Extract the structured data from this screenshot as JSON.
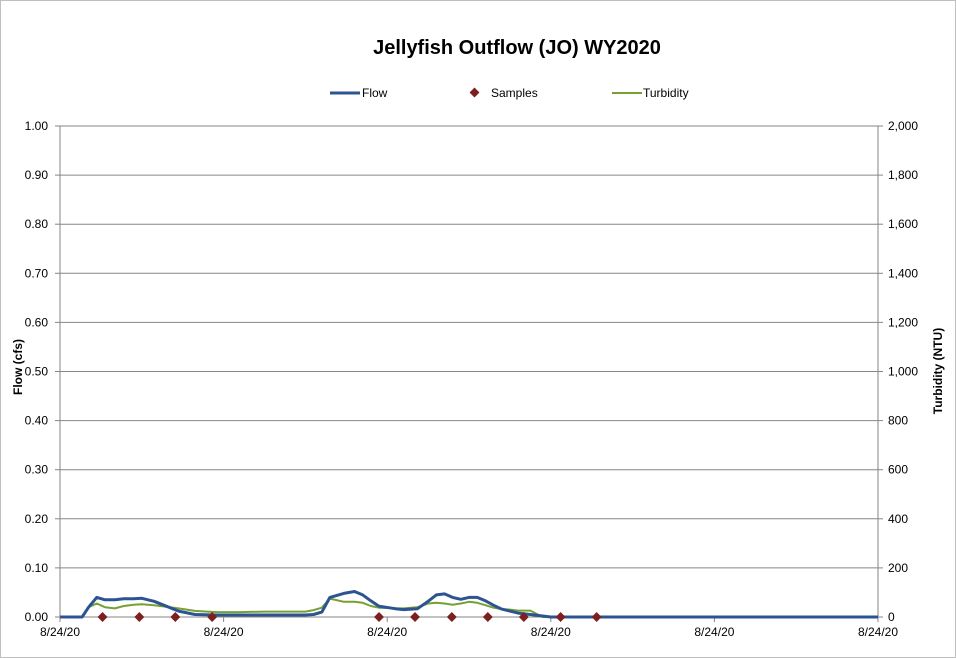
{
  "chart_data": {
    "type": "line",
    "title": "Jellyfish Outflow (JO) WY2020",
    "ylabel": "Flow (cfs)",
    "y2label": "Turbidity (NTU)",
    "ylim": [
      0,
      1
    ],
    "y2lim": [
      0,
      2000
    ],
    "y_ticks": [
      "0.00",
      "0.10",
      "0.20",
      "0.30",
      "0.40",
      "0.50",
      "0.60",
      "0.70",
      "0.80",
      "0.90",
      "1.00"
    ],
    "y2_ticks": [
      "0",
      "200",
      "400",
      "600",
      "800",
      "1,000",
      "1,200",
      "1,400",
      "1,600",
      "1,800",
      "2,000"
    ],
    "x_ticks": [
      "8/24/20",
      "8/24/20",
      "8/24/20",
      "8/24/20",
      "8/24/20",
      "8/24/20"
    ],
    "x_domain": [
      0,
      1
    ],
    "grid": true,
    "legend_position": "top",
    "series": [
      {
        "name": "Flow",
        "type": "line",
        "color": "#2c5491",
        "x": [
          0,
          0.027,
          0.035,
          0.045,
          0.055,
          0.067,
          0.078,
          0.09,
          0.1,
          0.115,
          0.13,
          0.145,
          0.165,
          0.19,
          0.22,
          0.25,
          0.28,
          0.3,
          0.31,
          0.32,
          0.33,
          0.347,
          0.36,
          0.37,
          0.38,
          0.39,
          0.41,
          0.42,
          0.437,
          0.45,
          0.46,
          0.47,
          0.48,
          0.49,
          0.5,
          0.51,
          0.52,
          0.53,
          0.54,
          0.55,
          0.56,
          0.575,
          0.59,
          0.6,
          0.609,
          0.625,
          0.7,
          0.8,
          0.9,
          1.0
        ],
        "y": [
          0,
          0,
          0.02,
          0.04,
          0.035,
          0.035,
          0.037,
          0.037,
          0.038,
          0.032,
          0.022,
          0.012,
          0.005,
          0.004,
          0.004,
          0.004,
          0.004,
          0.004,
          0.005,
          0.01,
          0.04,
          0.048,
          0.052,
          0.045,
          0.033,
          0.022,
          0.017,
          0.015,
          0.017,
          0.032,
          0.045,
          0.047,
          0.04,
          0.036,
          0.04,
          0.04,
          0.033,
          0.024,
          0.016,
          0.012,
          0.008,
          0.005,
          0.002,
          0,
          0,
          0,
          0,
          0,
          0,
          0
        ]
      },
      {
        "name": "Turbidity",
        "type": "line",
        "axis": "right",
        "color": "#77a033",
        "x": [
          0,
          0.027,
          0.035,
          0.045,
          0.055,
          0.067,
          0.078,
          0.09,
          0.1,
          0.115,
          0.13,
          0.145,
          0.165,
          0.19,
          0.22,
          0.25,
          0.28,
          0.3,
          0.31,
          0.32,
          0.33,
          0.347,
          0.36,
          0.37,
          0.38,
          0.39,
          0.41,
          0.42,
          0.437,
          0.45,
          0.46,
          0.47,
          0.48,
          0.49,
          0.5,
          0.51,
          0.52,
          0.53,
          0.54,
          0.55,
          0.56,
          0.575,
          0.59,
          0.6,
          0.609,
          0.625,
          0.7,
          0.8,
          0.9,
          1.0
        ],
        "y": [
          0,
          0,
          40,
          55,
          40,
          35,
          45,
          50,
          52,
          48,
          42,
          35,
          25,
          20,
          20,
          22,
          22,
          22,
          28,
          38,
          75,
          62,
          62,
          58,
          45,
          38,
          35,
          35,
          40,
          55,
          58,
          55,
          50,
          55,
          62,
          58,
          48,
          38,
          32,
          30,
          26,
          26,
          0,
          0,
          0,
          0,
          0,
          0,
          0,
          0
        ]
      },
      {
        "name": "Samples",
        "type": "scatter",
        "color": "#7b1f1f",
        "x": [
          0.052,
          0.097,
          0.141,
          0.186,
          0.39,
          0.434,
          0.479,
          0.523,
          0.567,
          0.612,
          0.656
        ],
        "y": [
          0,
          0,
          0,
          0,
          0,
          0,
          0,
          0,
          0,
          0,
          0
        ]
      }
    ]
  }
}
